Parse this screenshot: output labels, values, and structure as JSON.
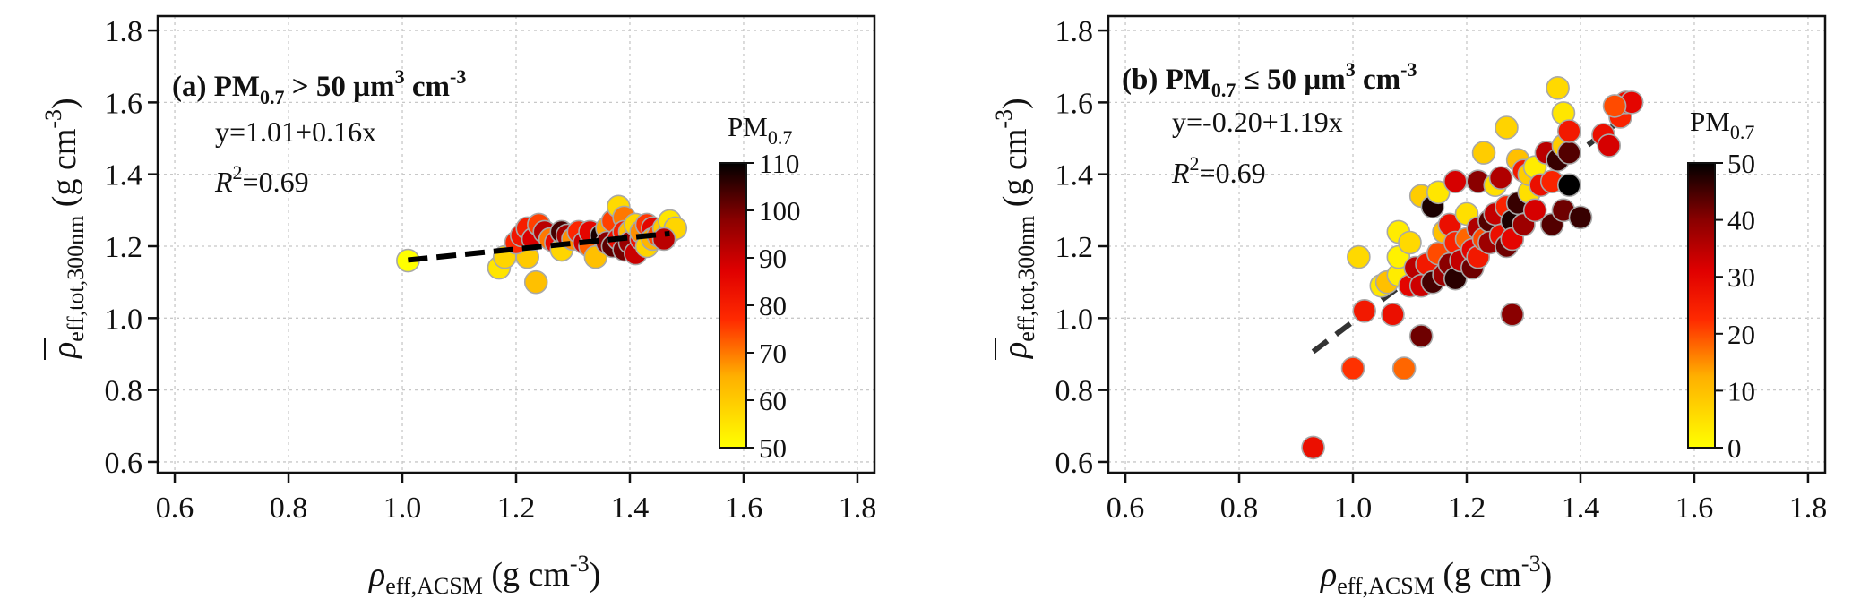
{
  "chart_data": [
    {
      "type": "scatter",
      "title": "(a) PM0.7 > 50 µm3 cm-3",
      "title_parts": {
        "prefix": "(a) PM",
        "sub": "0.7",
        "rel": " > 50 µm",
        "sup1": "3",
        "unit": " cm",
        "sup2": "-3"
      },
      "xlabel": {
        "sym": "ρ",
        "sub": "eff,ACSM",
        "unit": " (g cm",
        "sup": "-3",
        "close": ")"
      },
      "ylabel": {
        "sym": "ρ",
        "sub": "eff,tot,300nm",
        "unit": " (g cm",
        "sup": "-3",
        "close": ")"
      },
      "xlim": [
        0.57,
        1.83
      ],
      "ylim": [
        0.57,
        1.84
      ],
      "xticks": [
        "0.6",
        "0.8",
        "1.0",
        "1.2",
        "1.4",
        "1.6",
        "1.8"
      ],
      "yticks": [
        "0.6",
        "0.8",
        "1.0",
        "1.2",
        "1.4",
        "1.6",
        "1.8"
      ],
      "grid": true,
      "fit": {
        "equation": "y=1.01+0.16x",
        "r2_label": "R",
        "r2_sup": "2",
        "r2_value": "=0.69",
        "intercept": 1.0,
        "slope": 0.16,
        "x_range": [
          1.01,
          1.47
        ]
      },
      "colorbar": {
        "title": "PM",
        "title_sub": "0.7",
        "min": 50,
        "max": 110,
        "ticks": [
          "50",
          "60",
          "70",
          "80",
          "90",
          "100",
          "110"
        ]
      },
      "points": [
        [
          1.01,
          1.16,
          50
        ],
        [
          1.17,
          1.14,
          55
        ],
        [
          1.18,
          1.17,
          58
        ],
        [
          1.22,
          1.17,
          60
        ],
        [
          1.235,
          1.1,
          62
        ],
        [
          1.2,
          1.21,
          78
        ],
        [
          1.21,
          1.23,
          82
        ],
        [
          1.22,
          1.25,
          80
        ],
        [
          1.23,
          1.22,
          88
        ],
        [
          1.24,
          1.26,
          75
        ],
        [
          1.25,
          1.24,
          92
        ],
        [
          1.26,
          1.22,
          70
        ],
        [
          1.27,
          1.21,
          85
        ],
        [
          1.28,
          1.19,
          58
        ],
        [
          1.28,
          1.24,
          104
        ],
        [
          1.29,
          1.23,
          95
        ],
        [
          1.3,
          1.22,
          68
        ],
        [
          1.31,
          1.24,
          78
        ],
        [
          1.32,
          1.21,
          90
        ],
        [
          1.33,
          1.2,
          72
        ],
        [
          1.33,
          1.24,
          86
        ],
        [
          1.34,
          1.17,
          62
        ],
        [
          1.35,
          1.23,
          108
        ],
        [
          1.36,
          1.25,
          66
        ],
        [
          1.36,
          1.21,
          98
        ],
        [
          1.37,
          1.2,
          102
        ],
        [
          1.37,
          1.27,
          75
        ],
        [
          1.38,
          1.31,
          57
        ],
        [
          1.38,
          1.22,
          84
        ],
        [
          1.39,
          1.28,
          70
        ],
        [
          1.39,
          1.24,
          80
        ],
        [
          1.39,
          1.19,
          100
        ],
        [
          1.4,
          1.24,
          62
        ],
        [
          1.4,
          1.21,
          96
        ],
        [
          1.41,
          1.18,
          90
        ],
        [
          1.41,
          1.26,
          58
        ],
        [
          1.42,
          1.22,
          82
        ],
        [
          1.42,
          1.24,
          68
        ],
        [
          1.43,
          1.2,
          58
        ],
        [
          1.43,
          1.26,
          76
        ],
        [
          1.44,
          1.25,
          86
        ],
        [
          1.44,
          1.22,
          64
        ],
        [
          1.45,
          1.23,
          74
        ],
        [
          1.46,
          1.25,
          60
        ],
        [
          1.47,
          1.24,
          80
        ],
        [
          1.47,
          1.27,
          55
        ],
        [
          1.48,
          1.25,
          58
        ],
        [
          1.46,
          1.22,
          92
        ]
      ]
    },
    {
      "type": "scatter",
      "title": "(b) PM0.7 ≤ 50 µm3 cm-3",
      "title_parts": {
        "prefix": "(b) PM",
        "sub": "0.7",
        "rel": " ≤ 50 µm",
        "sup1": "3",
        "unit": " cm",
        "sup2": "-3"
      },
      "xlabel": {
        "sym": "ρ",
        "sub": "eff,ACSM",
        "unit": " (g cm",
        "sup": "-3",
        "close": ")"
      },
      "ylabel": {
        "sym": "ρ",
        "sub": "eff,tot,300nm",
        "unit": " (g cm",
        "sup": "-3",
        "close": ")"
      },
      "xlim": [
        0.57,
        1.83
      ],
      "ylim": [
        0.57,
        1.84
      ],
      "xticks": [
        "0.6",
        "0.8",
        "1.0",
        "1.2",
        "1.4",
        "1.6",
        "1.8"
      ],
      "yticks": [
        "0.6",
        "0.8",
        "1.0",
        "1.2",
        "1.4",
        "1.6",
        "1.8"
      ],
      "grid": true,
      "fit": {
        "equation": "y=-0.20+1.19x",
        "r2_label": "R",
        "r2_sup": "2",
        "r2_value": "=0.69",
        "intercept": -0.2,
        "slope": 1.19,
        "x_range": [
          0.93,
          1.48
        ]
      },
      "colorbar": {
        "title": "PM",
        "title_sub": "0.7",
        "min": 0,
        "max": 50,
        "ticks": [
          "0",
          "10",
          "20",
          "30",
          "40",
          "50"
        ]
      },
      "points": [
        [
          0.93,
          0.64,
          28
        ],
        [
          1.0,
          0.86,
          22
        ],
        [
          1.01,
          1.17,
          6
        ],
        [
          1.02,
          1.02,
          26
        ],
        [
          1.05,
          1.09,
          4
        ],
        [
          1.06,
          1.1,
          10
        ],
        [
          1.07,
          1.01,
          28
        ],
        [
          1.08,
          1.12,
          3
        ],
        [
          1.08,
          1.17,
          2
        ],
        [
          1.08,
          1.24,
          3
        ],
        [
          1.09,
          0.86,
          18
        ],
        [
          1.1,
          1.09,
          30
        ],
        [
          1.1,
          1.21,
          6
        ],
        [
          1.11,
          1.14,
          35
        ],
        [
          1.12,
          0.95,
          42
        ],
        [
          1.12,
          1.09,
          33
        ],
        [
          1.12,
          1.34,
          8
        ],
        [
          1.13,
          1.15,
          26
        ],
        [
          1.14,
          1.31,
          48
        ],
        [
          1.14,
          1.1,
          45
        ],
        [
          1.15,
          1.18,
          20
        ],
        [
          1.15,
          1.35,
          4
        ],
        [
          1.16,
          1.12,
          38
        ],
        [
          1.16,
          1.24,
          10
        ],
        [
          1.17,
          1.15,
          40
        ],
        [
          1.17,
          1.26,
          28
        ],
        [
          1.18,
          1.11,
          47
        ],
        [
          1.18,
          1.21,
          24
        ],
        [
          1.18,
          1.38,
          32
        ],
        [
          1.19,
          1.16,
          34
        ],
        [
          1.2,
          1.22,
          18
        ],
        [
          1.2,
          1.29,
          5
        ],
        [
          1.21,
          1.14,
          42
        ],
        [
          1.21,
          1.19,
          30
        ],
        [
          1.22,
          1.25,
          36
        ],
        [
          1.22,
          1.38,
          40
        ],
        [
          1.22,
          1.17,
          26
        ],
        [
          1.23,
          1.46,
          8
        ],
        [
          1.23,
          1.22,
          20
        ],
        [
          1.24,
          1.27,
          44
        ],
        [
          1.24,
          1.21,
          38
        ],
        [
          1.25,
          1.37,
          5
        ],
        [
          1.25,
          1.29,
          34
        ],
        [
          1.26,
          1.23,
          28
        ],
        [
          1.26,
          1.39,
          36
        ],
        [
          1.27,
          1.53,
          7
        ],
        [
          1.27,
          1.31,
          24
        ],
        [
          1.27,
          1.2,
          42
        ],
        [
          1.28,
          1.01,
          40
        ],
        [
          1.28,
          1.27,
          48
        ],
        [
          1.28,
          1.22,
          30
        ],
        [
          1.29,
          1.44,
          10
        ],
        [
          1.29,
          1.32,
          46
        ],
        [
          1.3,
          1.26,
          38
        ],
        [
          1.3,
          1.41,
          26
        ],
        [
          1.31,
          1.35,
          5
        ],
        [
          1.31,
          1.4,
          8
        ],
        [
          1.32,
          1.3,
          32
        ],
        [
          1.32,
          1.42,
          3
        ],
        [
          1.33,
          1.37,
          28
        ],
        [
          1.34,
          1.46,
          35
        ],
        [
          1.35,
          1.26,
          44
        ],
        [
          1.35,
          1.38,
          24
        ],
        [
          1.36,
          1.64,
          6
        ],
        [
          1.36,
          1.44,
          46
        ],
        [
          1.37,
          1.48,
          8
        ],
        [
          1.37,
          1.57,
          4
        ],
        [
          1.37,
          1.3,
          42
        ],
        [
          1.38,
          1.37,
          50
        ],
        [
          1.38,
          1.46,
          44
        ],
        [
          1.38,
          1.52,
          26
        ],
        [
          1.4,
          1.28,
          46
        ],
        [
          1.44,
          1.51,
          28
        ],
        [
          1.45,
          1.48,
          32
        ],
        [
          1.47,
          1.56,
          24
        ],
        [
          1.48,
          1.6,
          28
        ],
        [
          1.49,
          1.6,
          30
        ],
        [
          1.46,
          1.59,
          20
        ]
      ]
    }
  ]
}
